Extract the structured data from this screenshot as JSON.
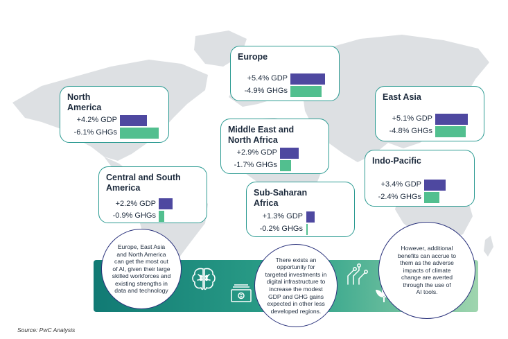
{
  "chart_data": {
    "type": "bar",
    "categories": [
      "North America",
      "Europe",
      "East Asia",
      "Middle East and North Africa",
      "Central and South America",
      "Sub-Saharan Africa",
      "Indo-Pacific"
    ],
    "series": [
      {
        "name": "GDP",
        "values": [
          4.2,
          5.4,
          5.1,
          2.9,
          2.2,
          1.3,
          3.4
        ]
      },
      {
        "name": "GHGs",
        "values": [
          -6.1,
          -4.9,
          -4.8,
          -1.7,
          -0.9,
          -0.2,
          -2.4
        ]
      }
    ]
  },
  "regions": {
    "north_america": {
      "name": "North\nAmerica",
      "gdp": "+4.2% GDP",
      "ghg": "-6.1% GHGs"
    },
    "europe": {
      "name": "Europe",
      "gdp": "+5.4% GDP",
      "ghg": "-4.9% GHGs"
    },
    "east_asia": {
      "name": "East Asia",
      "gdp": "+5.1% GDP",
      "ghg": "-4.8% GHGs"
    },
    "mena": {
      "name": "Middle East and\nNorth Africa",
      "gdp": "+2.9% GDP",
      "ghg": "-1.7% GHGs"
    },
    "central_south_america": {
      "name": "Central and South\nAmerica",
      "gdp": "+2.2% GDP",
      "ghg": "-0.9% GHGs"
    },
    "sub_saharan_africa": {
      "name": "Sub-Saharan\nAfrica",
      "gdp": "+1.3% GDP",
      "ghg": "-0.2% GHGs"
    },
    "indo_pacific": {
      "name": "Indo-Pacific",
      "gdp": "+3.4% GDP",
      "ghg": "-2.4% GHGs"
    }
  },
  "notes": {
    "left": "Europe, East Asia\nand North America\ncan get the most out\nof AI, given their large\nskilled workforces and\nexisting strengths in\ndata and technology",
    "middle": "There exists an\nopportunity for\ntargeted investments in\ndigital infrastructure to\nincrease the modest\nGDP and GHG gains\nexpected in other less\ndeveloped regions.",
    "right": "However, additional\nbenefits can accrue to\nthem as the adverse\nimpacts of climate\nchange are averted\nthrough the use of\nAI tools."
  },
  "source": "Source: PwC Analysis",
  "colors": {
    "gdp": "#4e48a0",
    "ghg": "#52bf8f",
    "border": "#2a9a91",
    "map": "#dde0e3"
  },
  "icons": [
    "brain-icon",
    "money-icon",
    "circuit-icon",
    "leaf-icon"
  ]
}
